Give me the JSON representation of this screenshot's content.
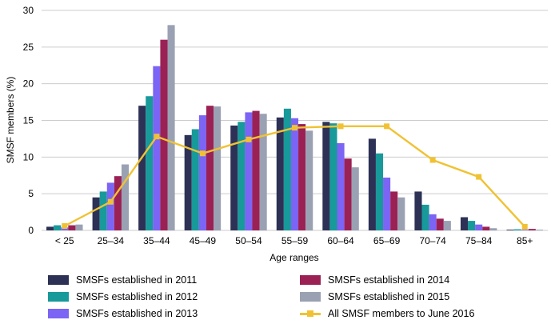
{
  "chart_data": {
    "type": "bar",
    "title": "",
    "xlabel": "Age ranges",
    "ylabel": "SMSF members (%)",
    "ylim": [
      0,
      30
    ],
    "ytick_step": 5,
    "grid": "horizontal",
    "legend_position": "bottom",
    "categories": [
      "< 25",
      "25–34",
      "35–44",
      "45–49",
      "50–54",
      "55–59",
      "60–64",
      "65–69",
      "70–74",
      "75–84",
      "85+"
    ],
    "series": [
      {
        "name": "SMSFs established in 2011",
        "type": "bar",
        "color": "#2d3156",
        "values": [
          0.5,
          4.5,
          17.0,
          13.0,
          14.3,
          15.4,
          14.8,
          12.5,
          5.3,
          1.8,
          0.1
        ]
      },
      {
        "name": "SMSFs established in 2012",
        "type": "bar",
        "color": "#18999a",
        "values": [
          0.7,
          5.3,
          18.3,
          13.8,
          14.8,
          16.6,
          14.6,
          10.5,
          3.5,
          1.3,
          0.15
        ]
      },
      {
        "name": "SMSFs established in 2013",
        "type": "bar",
        "color": "#7c64f4",
        "values": [
          0.4,
          6.5,
          22.4,
          15.7,
          16.1,
          15.3,
          11.9,
          7.2,
          2.2,
          0.8,
          0.1
        ]
      },
      {
        "name": "SMSFs established in 2014",
        "type": "bar",
        "color": "#9b2155",
        "values": [
          0.7,
          7.4,
          26.0,
          17.0,
          16.3,
          14.5,
          9.8,
          5.3,
          1.6,
          0.5,
          0.2
        ]
      },
      {
        "name": "SMSFs established in 2015",
        "type": "bar",
        "color": "#9aa1b3",
        "values": [
          0.8,
          9.0,
          28.0,
          16.9,
          15.9,
          13.6,
          8.6,
          4.5,
          1.3,
          0.3,
          0.1
        ]
      },
      {
        "name": "All SMSF members to June 2016",
        "type": "line",
        "marker": "square",
        "color": "#f0c233",
        "values": [
          0.6,
          3.9,
          12.8,
          10.5,
          12.4,
          14.0,
          14.2,
          14.2,
          9.6,
          7.3,
          0.5
        ]
      }
    ]
  },
  "colors": {
    "gridline": "#cccccc",
    "axis_text": "#000000",
    "background": "#ffffff"
  }
}
